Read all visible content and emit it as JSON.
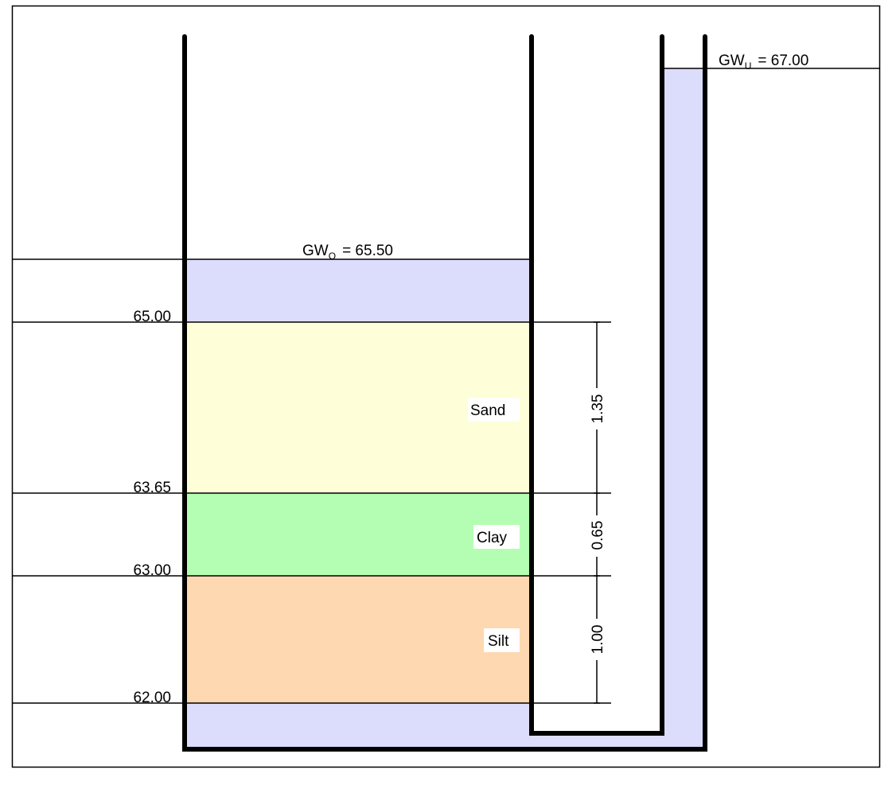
{
  "colors": {
    "water": "#dcdcfc",
    "sand": "#fefed8",
    "clay": "#b4feb4",
    "silt": "#fed8b0"
  },
  "groundwater": {
    "inside": {
      "prefix": "GW",
      "subscript": "O",
      "value": "= 65.50"
    },
    "outside": {
      "prefix": "GW",
      "subscript": "U",
      "value": "= 67.00"
    }
  },
  "elevations": [
    "65.00",
    "63.65",
    "63.00",
    "62.00"
  ],
  "layers": [
    {
      "name": "Sand",
      "thickness": "1.35"
    },
    {
      "name": "Clay",
      "thickness": "0.65"
    },
    {
      "name": "Silt",
      "thickness": "1.00"
    }
  ]
}
